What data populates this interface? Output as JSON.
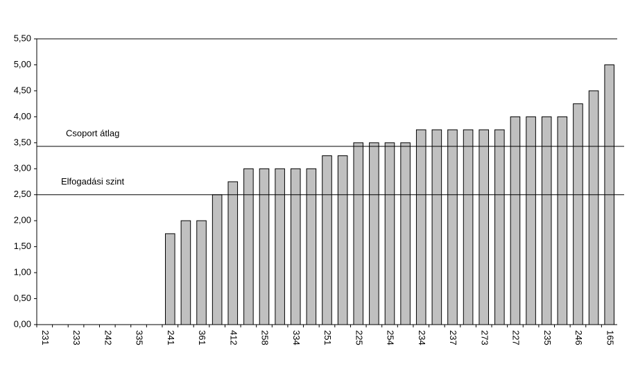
{
  "chart_data": {
    "type": "bar",
    "categories": [
      "231",
      null,
      "233",
      null,
      "242",
      null,
      "335",
      null,
      "241",
      null,
      "361",
      null,
      "412",
      null,
      "258",
      null,
      "334",
      null,
      "251",
      null,
      "225",
      null,
      "254",
      null,
      "234",
      null,
      "237",
      null,
      "273",
      null,
      "227",
      null,
      "235",
      null,
      "246",
      null,
      "165"
    ],
    "values": [
      0,
      0,
      0,
      0,
      0,
      0,
      0,
      0,
      1.75,
      2,
      2,
      2.5,
      2.75,
      3,
      3,
      3,
      3,
      3,
      3.25,
      3.25,
      3.5,
      3.5,
      3.5,
      3.5,
      3.75,
      3.75,
      3.75,
      3.75,
      3.75,
      3.75,
      4,
      4,
      4,
      4,
      4.25,
      4.5,
      5
    ],
    "color": "#c0c0c0",
    "ylim": [
      0,
      5.5
    ],
    "yticks": [
      {
        "value": 0,
        "label": "0,00"
      },
      {
        "value": 0.5,
        "label": "0,50"
      },
      {
        "value": 1,
        "label": "1,00"
      },
      {
        "value": 1.5,
        "label": "1,50"
      },
      {
        "value": 2,
        "label": "2,00"
      },
      {
        "value": 2.5,
        "label": "2,50"
      },
      {
        "value": 3,
        "label": "3,00"
      },
      {
        "value": 3.5,
        "label": "3,50"
      },
      {
        "value": 4,
        "label": "4,00"
      },
      {
        "value": 4.5,
        "label": "4,50"
      },
      {
        "value": 5,
        "label": "5,00"
      },
      {
        "value": 5.5,
        "label": "5,50"
      }
    ],
    "grid": false,
    "reference_lines": [
      {
        "label": "Csoport átlag",
        "value": 3.43
      },
      {
        "label": "Elfogadási szint",
        "value": 2.5
      }
    ]
  }
}
